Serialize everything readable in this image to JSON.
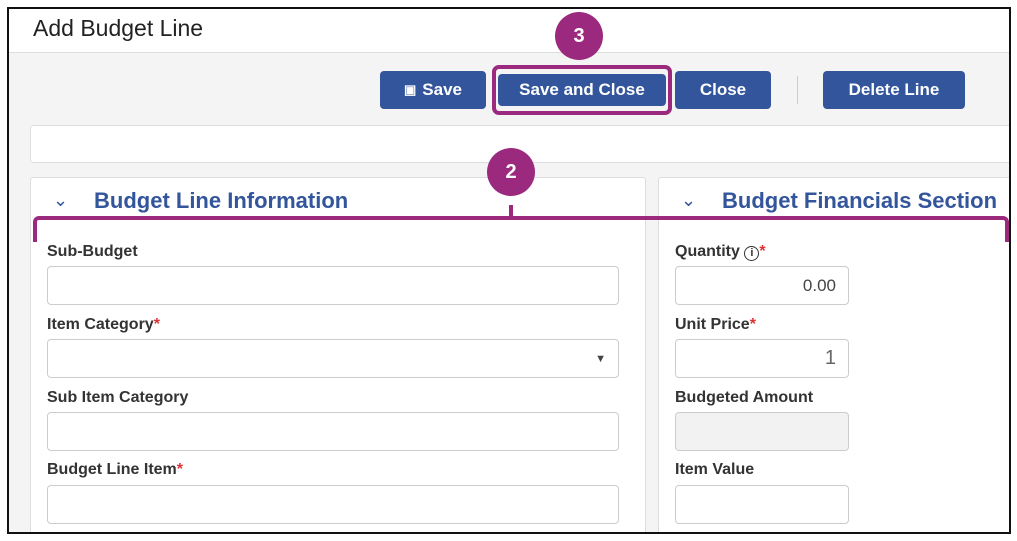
{
  "window": {
    "title": "Add Budget Line"
  },
  "toolbar": {
    "save": "Save",
    "save_close": "Save and Close",
    "close": "Close",
    "delete": "Delete Line"
  },
  "callouts": {
    "one": "3",
    "two": "2"
  },
  "colors": {
    "accent": "#33559b",
    "callout": "#9b2a7e"
  },
  "left": {
    "title": "Budget Line Information",
    "fields": [
      {
        "label": "Sub-Budget",
        "value": ""
      },
      {
        "label": "Item Category",
        "required": "*",
        "value": ""
      },
      {
        "label": "Sub Item Category",
        "value": ""
      },
      {
        "label": "Budget Line Item",
        "required": "*",
        "value": ""
      }
    ]
  },
  "right": {
    "title": "Budget Financials Section",
    "fields": [
      {
        "label": "Quantity",
        "required": "*",
        "value": "0.00"
      },
      {
        "label": "Unit Price",
        "required": "*",
        "value": "1"
      },
      {
        "label": "Budgeted Amount",
        "value": ""
      },
      {
        "label": "Item Value",
        "value": ""
      }
    ]
  }
}
